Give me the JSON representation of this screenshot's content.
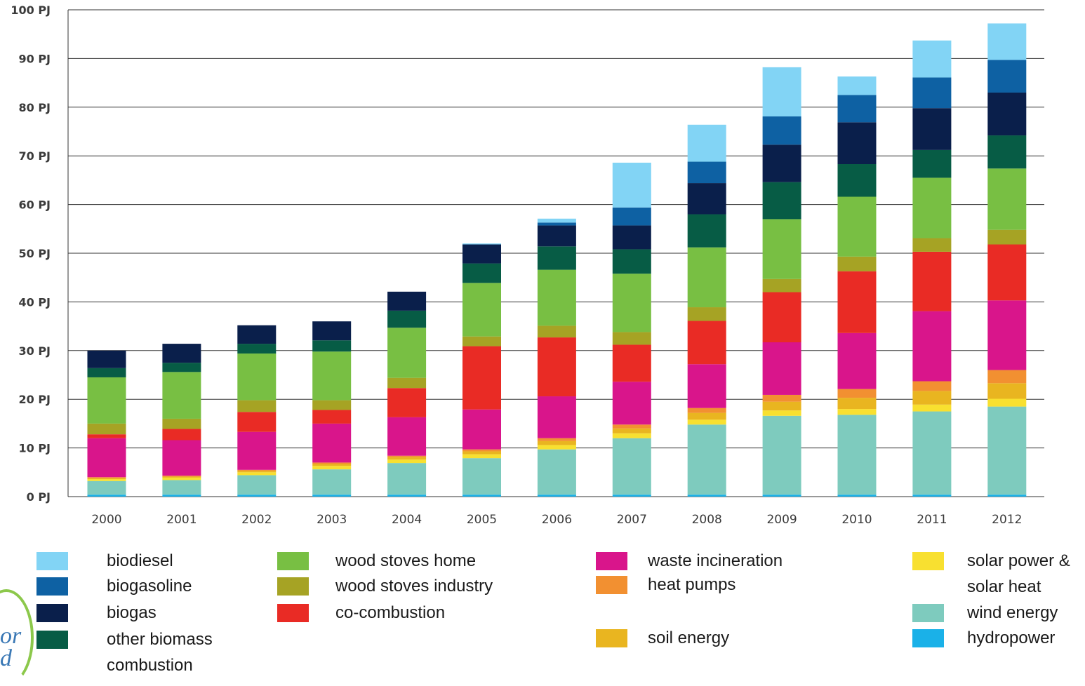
{
  "chart_data": {
    "type": "bar",
    "stacked": true,
    "categories": [
      "2000",
      "2001",
      "2002",
      "2003",
      "2004",
      "2005",
      "2006",
      "2007",
      "2008",
      "2009",
      "2010",
      "2011",
      "2012"
    ],
    "y_ticks": [
      "0 PJ",
      "10 PJ",
      "20 PJ",
      "30 PJ",
      "40 PJ",
      "50 PJ",
      "60 PJ",
      "70 PJ",
      "80 PJ",
      "90 PJ",
      "100 PJ"
    ],
    "ylim": [
      0,
      100
    ],
    "grid": true,
    "series": [
      {
        "name": "hydropower",
        "color": "#1ab1e8",
        "values": [
          0.4,
          0.4,
          0.4,
          0.4,
          0.4,
          0.4,
          0.4,
          0.4,
          0.4,
          0.4,
          0.4,
          0.4,
          0.4
        ]
      },
      {
        "name": "wind energy",
        "color": "#7ecbbe",
        "values": [
          2.8,
          3.0,
          4.0,
          5.2,
          6.5,
          7.5,
          9.3,
          11.6,
          14.4,
          16.2,
          16.4,
          17.1,
          18.1
        ]
      },
      {
        "name": "solar power &\nsolar heat",
        "color": "#f8e030",
        "values": [
          0.4,
          0.5,
          0.6,
          0.7,
          0.7,
          0.8,
          0.9,
          1.0,
          1.0,
          1.1,
          1.2,
          1.4,
          1.6
        ]
      },
      {
        "name": "soil energy",
        "color": "#e9b520",
        "values": [
          0.2,
          0.2,
          0.3,
          0.4,
          0.5,
          0.6,
          0.8,
          1.0,
          1.4,
          1.8,
          2.3,
          2.8,
          3.2
        ]
      },
      {
        "name": "heat pumps",
        "color": "#f29031",
        "values": [
          0.2,
          0.2,
          0.2,
          0.3,
          0.3,
          0.4,
          0.6,
          0.8,
          1.0,
          1.4,
          1.8,
          2.0,
          2.7
        ]
      },
      {
        "name": "waste incineration",
        "color": "#d9158b",
        "values": [
          8.0,
          7.3,
          7.8,
          8.0,
          7.9,
          8.2,
          8.6,
          8.8,
          9.0,
          10.8,
          11.5,
          14.4,
          14.3
        ]
      },
      {
        "name": "co-combustion",
        "color": "#e92b25",
        "values": [
          0.8,
          2.3,
          4.1,
          2.8,
          6.0,
          13.0,
          12.1,
          7.6,
          8.9,
          10.3,
          12.7,
          12.2,
          11.5
        ]
      },
      {
        "name": "wood stoves industry",
        "color": "#a6a324",
        "values": [
          2.2,
          2.1,
          2.4,
          2.0,
          2.1,
          2.0,
          2.4,
          2.6,
          2.8,
          2.7,
          3.0,
          2.8,
          3.0
        ]
      },
      {
        "name": "wood stoves home",
        "color": "#78bf43",
        "values": [
          9.5,
          9.6,
          9.6,
          10.0,
          10.3,
          11.0,
          11.5,
          12.0,
          12.3,
          12.3,
          12.3,
          12.4,
          12.6
        ]
      },
      {
        "name": "other biomass\ncombustion",
        "color": "#075c45",
        "values": [
          1.9,
          1.9,
          2.0,
          2.3,
          3.5,
          4.0,
          4.8,
          5.0,
          6.8,
          7.6,
          6.7,
          5.7,
          6.8
        ]
      },
      {
        "name": "biogas",
        "color": "#0a1f4b",
        "values": [
          3.6,
          3.9,
          3.8,
          3.9,
          3.9,
          3.9,
          4.3,
          4.9,
          6.4,
          7.7,
          8.6,
          8.6,
          8.8
        ]
      },
      {
        "name": "biogasoline",
        "color": "#0e61a3",
        "values": [
          0,
          0,
          0,
          0,
          0,
          0,
          0.6,
          3.7,
          4.4,
          5.8,
          5.6,
          6.3,
          6.7
        ]
      },
      {
        "name": "biodiesel",
        "color": "#82d4f5",
        "values": [
          0,
          0,
          0,
          0,
          0,
          0.2,
          0.8,
          9.2,
          7.6,
          10.1,
          3.8,
          7.6,
          7.5
        ]
      }
    ]
  },
  "legend": {
    "columns": [
      [
        "biodiesel",
        "biogasoline",
        "biogas",
        "other biomass\ncombustion"
      ],
      [
        "wood stoves home",
        "wood stoves industry",
        "co-combustion"
      ],
      [
        "waste incineration",
        "heat pumps",
        "soil energy"
      ],
      [
        "solar power &\nsolar heat",
        "wind energy",
        "hydropower"
      ]
    ]
  },
  "logo": {
    "text": "or\nd"
  }
}
